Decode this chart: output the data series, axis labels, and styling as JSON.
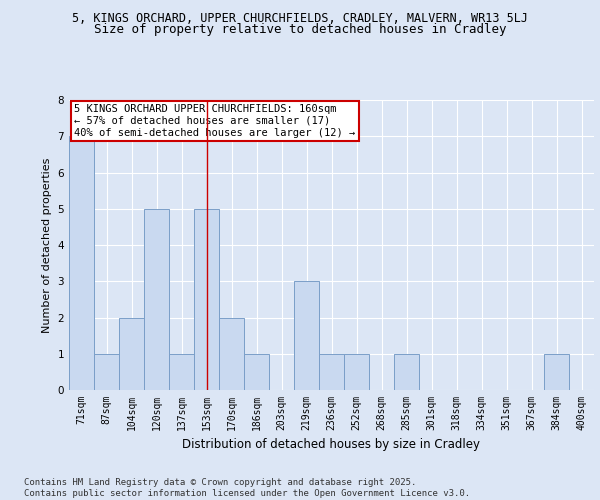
{
  "title1": "5, KINGS ORCHARD, UPPER CHURCHFIELDS, CRADLEY, MALVERN, WR13 5LJ",
  "title2": "Size of property relative to detached houses in Cradley",
  "xlabel": "Distribution of detached houses by size in Cradley",
  "ylabel": "Number of detached properties",
  "categories": [
    "71sqm",
    "87sqm",
    "104sqm",
    "120sqm",
    "137sqm",
    "153sqm",
    "170sqm",
    "186sqm",
    "203sqm",
    "219sqm",
    "236sqm",
    "252sqm",
    "268sqm",
    "285sqm",
    "301sqm",
    "318sqm",
    "334sqm",
    "351sqm",
    "367sqm",
    "384sqm",
    "400sqm"
  ],
  "values": [
    7,
    1,
    2,
    5,
    1,
    5,
    2,
    1,
    0,
    3,
    1,
    1,
    0,
    1,
    0,
    0,
    0,
    0,
    0,
    1,
    0
  ],
  "bar_color": "#c9d9f0",
  "bar_edge_color": "#7a9ec8",
  "vline_x_index": 5,
  "vline_color": "#cc0000",
  "annotation_text": "5 KINGS ORCHARD UPPER CHURCHFIELDS: 160sqm\n← 57% of detached houses are smaller (17)\n40% of semi-detached houses are larger (12) →",
  "annotation_box_color": "#ffffff",
  "annotation_box_edge_color": "#cc0000",
  "ylim": [
    0,
    8
  ],
  "yticks": [
    0,
    1,
    2,
    3,
    4,
    5,
    6,
    7,
    8
  ],
  "bg_color": "#dce6f5",
  "plot_bg_color": "#dce6f5",
  "footer_text": "Contains HM Land Registry data © Crown copyright and database right 2025.\nContains public sector information licensed under the Open Government Licence v3.0.",
  "title_fontsize": 8.5,
  "subtitle_fontsize": 9,
  "axis_label_fontsize": 8,
  "tick_fontsize": 7,
  "annotation_fontsize": 7.5,
  "footer_fontsize": 6.5
}
